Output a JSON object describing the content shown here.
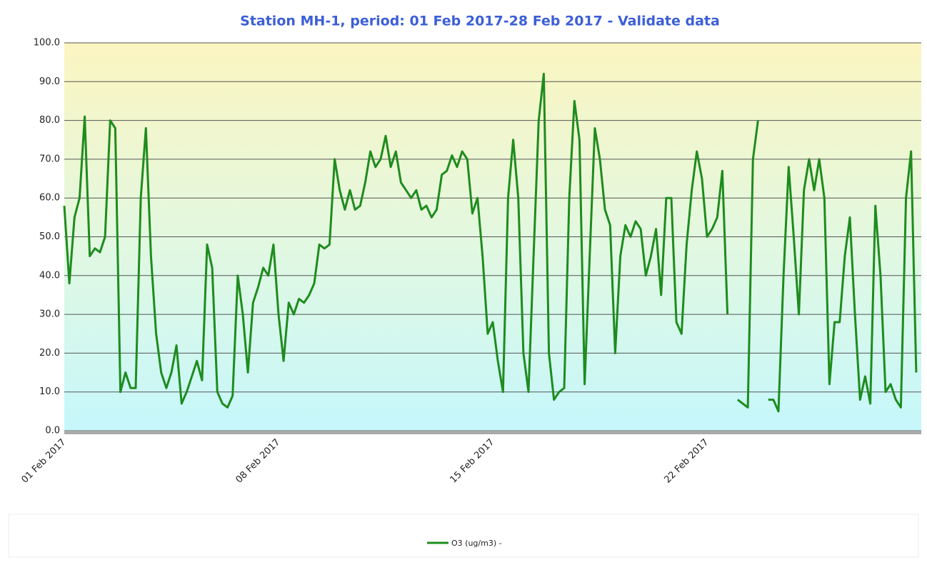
{
  "chart_data": {
    "type": "line",
    "title": "Station MH-1, period: 01 Feb 2017-28 Feb 2017 - Validate data",
    "categories": [
      "01 Feb 2017",
      null,
      null,
      null,
      null,
      null,
      null,
      null,
      null,
      null,
      null,
      null,
      null,
      null,
      null,
      null,
      null,
      null,
      null,
      null,
      null,
      null,
      null,
      null,
      null,
      null,
      null,
      null,
      null,
      null,
      null,
      null,
      null,
      null,
      null,
      null,
      null,
      null,
      null,
      null,
      null,
      null,
      "08 Feb 2017",
      null,
      null,
      null,
      null,
      null,
      null,
      null,
      null,
      null,
      null,
      null,
      null,
      null,
      null,
      null,
      null,
      null,
      null,
      null,
      null,
      null,
      null,
      null,
      null,
      null,
      null,
      null,
      null,
      null,
      null,
      null,
      null,
      null,
      null,
      null,
      null,
      null,
      null,
      null,
      null,
      null,
      "15 Feb 2017",
      null,
      null,
      null,
      null,
      null,
      null,
      null,
      null,
      null,
      null,
      null,
      null,
      null,
      null,
      null,
      null,
      null,
      null,
      null,
      null,
      null,
      null,
      null,
      null,
      null,
      null,
      null,
      null,
      null,
      null,
      null,
      null,
      null,
      null,
      null,
      null,
      null,
      null,
      null,
      null,
      null,
      "22 Feb 2017",
      null,
      null,
      null,
      null,
      null,
      null,
      null,
      null,
      null,
      null,
      null,
      null,
      null,
      null,
      null,
      null,
      null,
      null,
      null,
      null,
      null,
      null,
      null,
      null,
      null,
      null,
      null,
      null,
      null,
      null,
      null,
      null,
      null,
      null,
      null,
      null,
      null,
      null,
      null,
      null,
      null
    ],
    "series": [
      {
        "name": "O3 (ug/m3) -",
        "color": "#1e8c1e",
        "values": [
          58,
          38,
          55,
          60,
          81,
          45,
          47,
          46,
          50,
          80,
          78,
          10,
          15,
          11,
          11,
          60,
          78,
          45,
          25,
          15,
          11,
          15,
          22,
          7,
          10,
          14,
          18,
          13,
          48,
          42,
          10,
          7,
          6,
          9,
          40,
          30,
          15,
          33,
          37,
          42,
          40,
          48,
          30,
          18,
          33,
          30,
          34,
          33,
          35,
          38,
          48,
          47,
          48,
          70,
          62,
          57,
          62,
          57,
          58,
          64,
          72,
          68,
          70,
          76,
          68,
          72,
          64,
          62,
          60,
          62,
          57,
          58,
          55,
          57,
          66,
          67,
          71,
          68,
          72,
          70,
          56,
          60,
          45,
          25,
          28,
          18,
          10,
          60,
          75,
          60,
          20,
          10,
          45,
          80,
          92,
          20,
          8,
          10,
          11,
          60,
          85,
          75,
          12,
          45,
          78,
          70,
          57,
          53,
          20,
          45,
          53,
          50,
          54,
          52,
          40,
          45,
          52,
          35,
          60,
          60,
          28,
          25,
          48,
          62,
          72,
          65,
          50,
          52,
          55,
          67,
          30,
          null,
          8,
          7,
          6,
          70,
          80,
          null,
          8,
          8,
          5,
          40,
          68,
          50,
          30,
          62,
          70,
          62,
          70,
          60,
          12,
          28,
          28,
          45,
          55,
          30,
          8,
          14,
          7,
          58,
          40,
          10,
          12,
          8,
          6,
          60,
          72,
          15
        ]
      }
    ],
    "ylim": [
      0,
      100
    ],
    "yticks": [
      {
        "value": 0,
        "label": "0.0"
      },
      {
        "value": 10,
        "label": "10.0"
      },
      {
        "value": 20,
        "label": "20.0"
      },
      {
        "value": 30,
        "label": "30.0"
      },
      {
        "value": 40,
        "label": "40.0"
      },
      {
        "value": 50,
        "label": "50.0"
      },
      {
        "value": 60,
        "label": "60.0"
      },
      {
        "value": 70,
        "label": "70.0"
      },
      {
        "value": 80,
        "label": "80.0"
      },
      {
        "value": 90,
        "label": "90.0"
      },
      {
        "value": 100,
        "label": "100.0"
      }
    ],
    "grid": true
  }
}
